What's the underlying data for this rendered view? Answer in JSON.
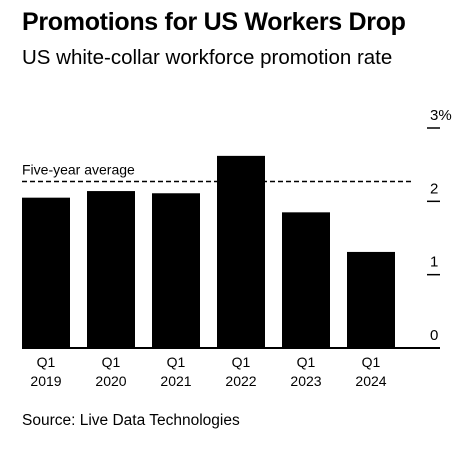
{
  "title": "Promotions for US Workers Drop",
  "subtitle": "US white-collar workforce promotion rate",
  "source": "Source: Live Data Technologies",
  "chart_data": {
    "type": "bar",
    "categories": [
      [
        "Q1",
        "2019"
      ],
      [
        "Q1",
        "2020"
      ],
      [
        "Q1",
        "2021"
      ],
      [
        "Q1",
        "2022"
      ],
      [
        "Q1",
        "2023"
      ],
      [
        "Q1",
        "2024"
      ]
    ],
    "values": [
      2.05,
      2.14,
      2.11,
      2.62,
      1.85,
      1.31
    ],
    "ylim": [
      0,
      3
    ],
    "y_ticks": [
      {
        "value": 0,
        "label": "0"
      },
      {
        "value": 1,
        "label": "1"
      },
      {
        "value": 2,
        "label": "2"
      },
      {
        "value": 3,
        "label": "3%"
      }
    ],
    "reference_line": {
      "label": "Five-year average",
      "value": 2.27,
      "style": "dashed"
    },
    "axis_side": "right",
    "grid": false,
    "bar_color": "#000000"
  }
}
